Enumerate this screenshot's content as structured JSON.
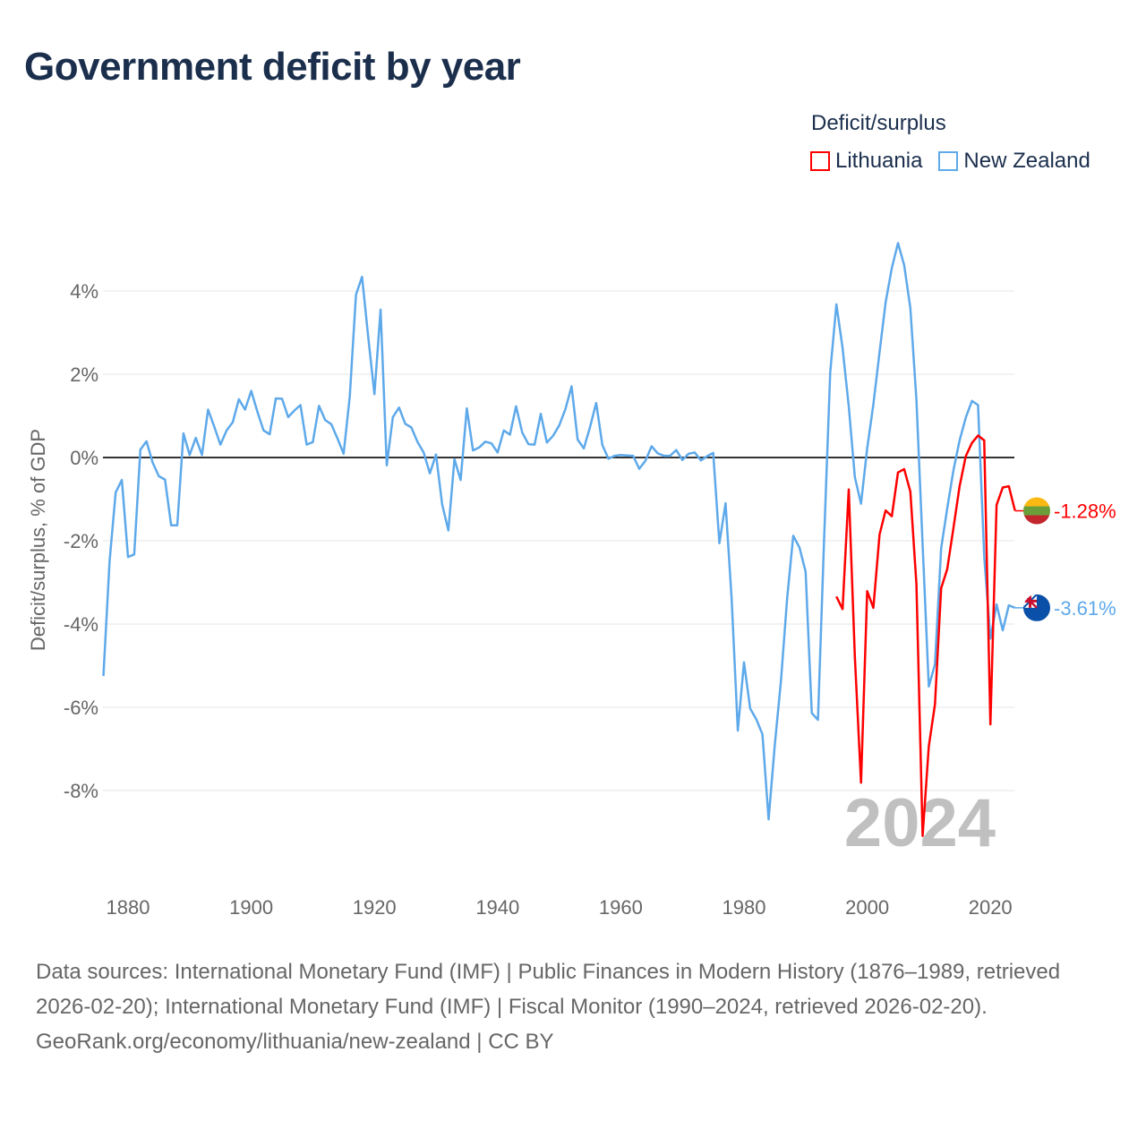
{
  "title": "Government deficit by year",
  "legend": {
    "title": "Deficit/surplus",
    "items": [
      {
        "name": "Lithuania",
        "color": "#ff0000"
      },
      {
        "name": "New Zealand",
        "color": "#5ea9ea"
      }
    ]
  },
  "footer": {
    "sources": "Data sources: International Monetary Fund (IMF) | Public Finances in Modern History (1876–1989, retrieved 2026-02-20); International Monetary Fund (IMF) | Fiscal Monitor (1990–2024, retrieved 2026-02-20).",
    "credit": "GeoRank.org/economy/lithuania/new-zealand | CC BY"
  },
  "chart_data": {
    "type": "line",
    "title": "Government deficit by year",
    "xlabel": "",
    "ylabel": "Deficit/surplus, % of GDP",
    "xlim": [
      1876,
      2024
    ],
    "ylim": [
      -9.5,
      5.5
    ],
    "x_ticks": [
      1880,
      1900,
      1920,
      1940,
      1960,
      1980,
      2000,
      2020
    ],
    "y_ticks": [
      4,
      2,
      0,
      -2,
      -4,
      -6,
      -8
    ],
    "y_tick_labels": [
      "4%",
      "2%",
      "0%",
      "-2%",
      "-4%",
      "-6%",
      "-8%"
    ],
    "grid": true,
    "legend_position": "top-right",
    "year_annotation": "2024",
    "series": [
      {
        "name": "Lithuania",
        "color": "#ff0000",
        "start_year": 1995,
        "end_label": "-1.28%",
        "flag": "lithuania-flag",
        "values": [
          -3.34,
          -3.64,
          -0.77,
          -4.78,
          -7.81,
          -3.21,
          -3.61,
          -1.85,
          -1.27,
          -1.41,
          -0.36,
          -0.28,
          -0.82,
          -3.05,
          -9.09,
          -6.94,
          -5.93,
          -3.14,
          -2.68,
          -1.7,
          -0.69,
          0.03,
          0.35,
          0.53,
          0.41,
          -6.41,
          -1.14,
          -0.72,
          -0.69,
          -1.28
        ]
      },
      {
        "name": "New Zealand",
        "color": "#5ea9ea",
        "start_year": 1876,
        "end_label": "-3.61%",
        "flag": "new-zealand-flag",
        "values": [
          -5.25,
          -2.49,
          -0.84,
          -0.54,
          -2.39,
          -2.33,
          0.19,
          0.39,
          -0.12,
          -0.45,
          -0.53,
          -1.63,
          -1.63,
          0.58,
          0.06,
          0.47,
          0.06,
          1.15,
          0.74,
          0.31,
          0.65,
          0.85,
          1.4,
          1.15,
          1.6,
          1.1,
          0.65,
          0.56,
          1.42,
          1.41,
          0.97,
          1.13,
          1.26,
          0.31,
          0.37,
          1.24,
          0.9,
          0.8,
          0.46,
          0.09,
          1.47,
          3.91,
          4.34,
          2.89,
          1.52,
          3.55,
          -0.19,
          0.97,
          1.2,
          0.81,
          0.72,
          0.37,
          0.12,
          -0.38,
          0.07,
          -1.13,
          -1.75,
          -0.04,
          -0.54,
          1.18,
          0.17,
          0.24,
          0.38,
          0.34,
          0.12,
          0.65,
          0.55,
          1.23,
          0.6,
          0.32,
          0.31,
          1.05,
          0.36,
          0.52,
          0.77,
          1.16,
          1.71,
          0.43,
          0.22,
          0.73,
          1.31,
          0.3,
          -0.03,
          0.04,
          0.06,
          0.05,
          0.04,
          -0.27,
          -0.08,
          0.27,
          0.1,
          0.04,
          0.04,
          0.18,
          -0.06,
          0.09,
          0.12,
          -0.07,
          0.03,
          0.11,
          -2.06,
          -1.1,
          -3.4,
          -6.56,
          -4.92,
          -6.03,
          -6.29,
          -6.65,
          -8.69,
          -6.9,
          -5.36,
          -3.38,
          -1.88,
          -2.16,
          -2.74,
          -6.14,
          -6.3,
          -2.0,
          2.05,
          3.68,
          2.63,
          1.23,
          -0.47,
          -1.11,
          0.22,
          1.28,
          2.53,
          3.73,
          4.55,
          5.15,
          4.62,
          3.59,
          1.38,
          -2.09,
          -5.5,
          -4.97,
          -2.18,
          -1.22,
          -0.31,
          0.41,
          0.96,
          1.36,
          1.26,
          -2.38,
          -4.35,
          -3.53,
          -4.15,
          -3.55,
          -3.61
        ]
      }
    ]
  }
}
